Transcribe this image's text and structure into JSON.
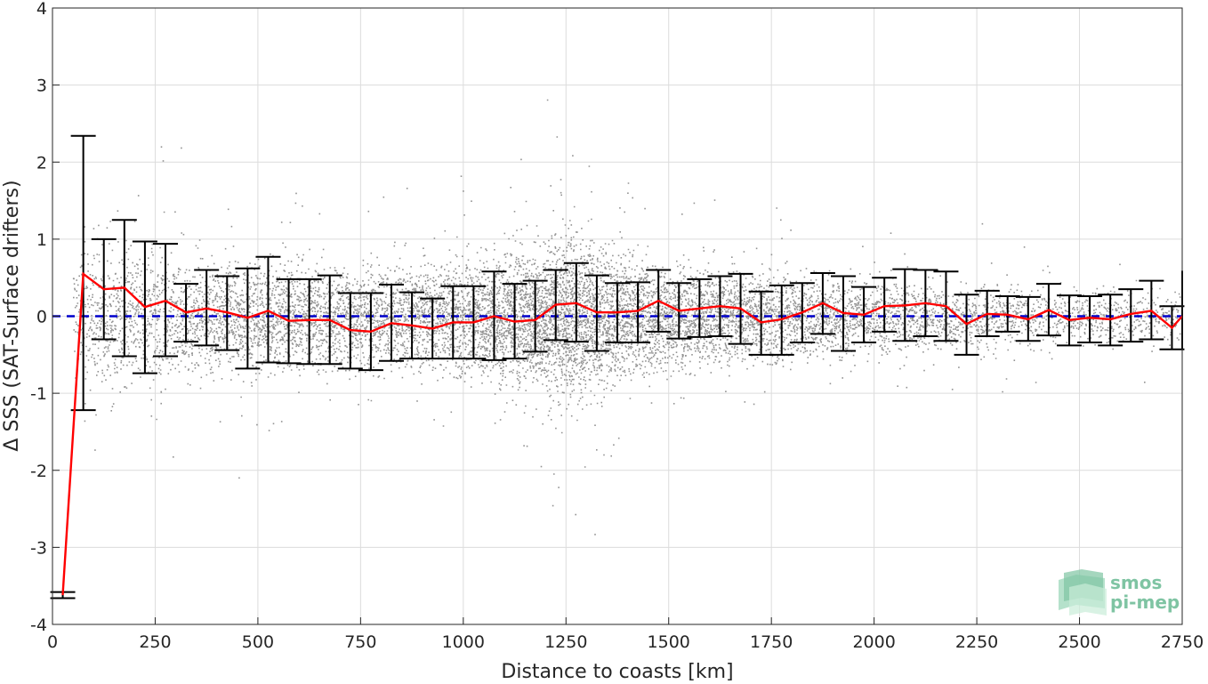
{
  "chart_data": {
    "type": "scatter",
    "xlabel": "Distance to coasts [km]",
    "ylabel": "Δ SSS (SAT-Surface drifters)",
    "xlim": [
      0,
      2750
    ],
    "ylim": [
      -4,
      4
    ],
    "xticks": [
      0,
      250,
      500,
      750,
      1000,
      1250,
      1500,
      1750,
      2000,
      2250,
      2500,
      2750
    ],
    "yticks": [
      -4,
      -3,
      -2,
      -1,
      0,
      1,
      2,
      3,
      4
    ],
    "grid": true,
    "zero_line_color": "#0000cc",
    "mean_line_color": "#ff0000",
    "errorbar_color": "#000000",
    "scatter_color": "#808080",
    "binned_stats": {
      "x": [
        25,
        75,
        125,
        175,
        225,
        275,
        325,
        375,
        425,
        475,
        525,
        575,
        625,
        675,
        725,
        775,
        825,
        875,
        925,
        975,
        1025,
        1075,
        1125,
        1175,
        1225,
        1275,
        1325,
        1375,
        1425,
        1475,
        1525,
        1575,
        1625,
        1675,
        1725,
        1775,
        1825,
        1875,
        1925,
        1975,
        2025,
        2075,
        2125,
        2175,
        2225,
        2275,
        2325,
        2375,
        2425,
        2475,
        2525,
        2575,
        2625,
        2675,
        2725,
        2750
      ],
      "mean": [
        -3.62,
        0.55,
        0.35,
        0.37,
        0.12,
        0.2,
        0.05,
        0.1,
        0.05,
        -0.02,
        0.07,
        -0.06,
        -0.05,
        -0.05,
        -0.18,
        -0.2,
        -0.09,
        -0.12,
        -0.16,
        -0.08,
        -0.08,
        0.0,
        -0.07,
        -0.05,
        0.15,
        0.17,
        0.05,
        0.05,
        0.07,
        0.2,
        0.07,
        0.1,
        0.13,
        0.1,
        -0.08,
        -0.04,
        0.05,
        0.17,
        0.04,
        0.02,
        0.13,
        0.14,
        0.17,
        0.13,
        -0.1,
        0.03,
        0.02,
        -0.04,
        0.08,
        -0.05,
        -0.02,
        -0.04,
        0.03,
        0.07,
        -0.15,
        0.0
      ],
      "upper": [
        -3.58,
        2.34,
        1.0,
        1.25,
        0.97,
        0.94,
        0.42,
        0.6,
        0.52,
        0.62,
        0.77,
        0.48,
        0.48,
        0.53,
        0.3,
        0.3,
        0.41,
        0.31,
        0.23,
        0.39,
        0.39,
        0.58,
        0.42,
        0.46,
        0.6,
        0.69,
        0.53,
        0.43,
        0.44,
        0.6,
        0.43,
        0.48,
        0.52,
        0.55,
        0.32,
        0.4,
        0.43,
        0.56,
        0.52,
        0.38,
        0.5,
        0.61,
        0.6,
        0.58,
        0.28,
        0.33,
        0.26,
        0.25,
        0.42,
        0.27,
        0.26,
        0.28,
        0.35,
        0.46,
        0.13,
        0.59
      ],
      "lower": [
        -3.66,
        -1.22,
        -0.3,
        -0.52,
        -0.74,
        -0.52,
        -0.33,
        -0.38,
        -0.44,
        -0.68,
        -0.6,
        -0.61,
        -0.62,
        -0.62,
        -0.68,
        -0.7,
        -0.58,
        -0.55,
        -0.55,
        -0.55,
        -0.55,
        -0.57,
        -0.55,
        -0.46,
        -0.31,
        -0.33,
        -0.45,
        -0.34,
        -0.34,
        -0.2,
        -0.29,
        -0.27,
        -0.26,
        -0.36,
        -0.5,
        -0.5,
        -0.34,
        -0.23,
        -0.45,
        -0.34,
        -0.2,
        -0.32,
        -0.26,
        -0.32,
        -0.5,
        -0.26,
        -0.2,
        -0.32,
        -0.25,
        -0.38,
        -0.34,
        -0.38,
        -0.33,
        -0.3,
        -0.43,
        -0.43
      ]
    },
    "scatter_density": {
      "x": [
        50,
        100,
        150,
        200,
        250,
        300,
        400,
        500,
        600,
        700,
        800,
        900,
        1000,
        1100,
        1200,
        1250,
        1300,
        1400,
        1500,
        1600,
        1700,
        1800,
        1900,
        2000,
        2100,
        2200,
        2300,
        2400,
        2500,
        2600,
        2700,
        2750
      ],
      "spread": [
        0.9,
        0.9,
        0.85,
        0.8,
        0.75,
        0.65,
        0.6,
        0.6,
        0.6,
        0.6,
        0.6,
        0.6,
        0.65,
        0.75,
        0.85,
        0.95,
        0.85,
        0.65,
        0.6,
        0.55,
        0.5,
        0.5,
        0.45,
        0.4,
        0.45,
        0.4,
        0.35,
        0.35,
        0.3,
        0.3,
        0.3,
        0.3
      ],
      "weight": [
        0.3,
        0.5,
        0.6,
        0.6,
        0.6,
        0.6,
        0.7,
        0.8,
        0.8,
        0.8,
        0.8,
        0.9,
        1.0,
        1.2,
        1.6,
        1.8,
        1.5,
        1.2,
        1.0,
        0.9,
        0.8,
        0.7,
        0.6,
        0.5,
        0.5,
        0.4,
        0.35,
        0.3,
        0.3,
        0.25,
        0.2,
        0.2
      ]
    }
  },
  "logo": {
    "line1": "smos",
    "line2": "pi-mep"
  }
}
